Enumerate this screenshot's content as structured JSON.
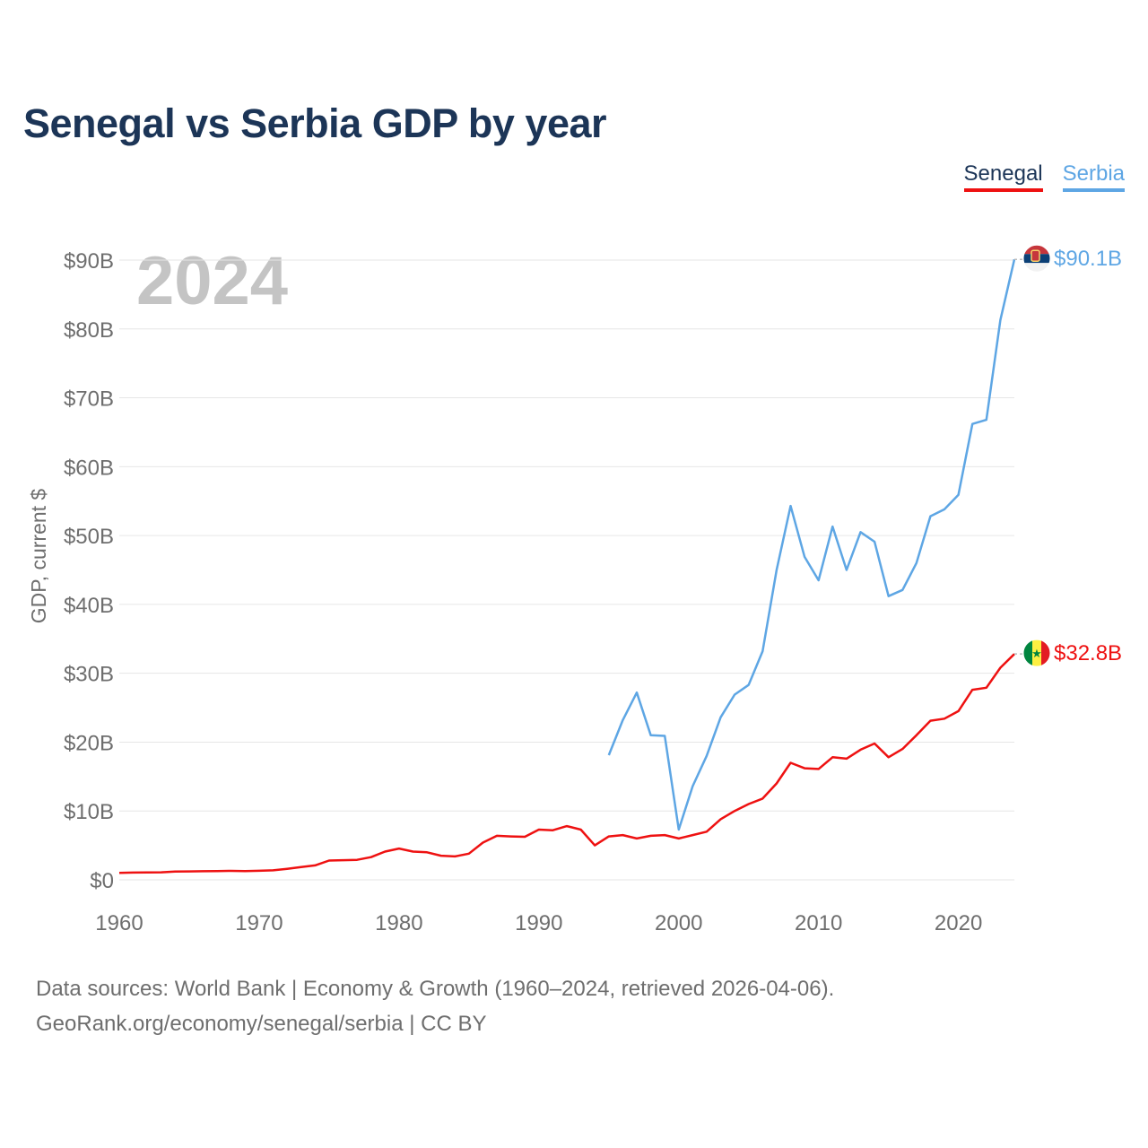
{
  "title": "Senegal vs Serbia GDP by year",
  "legend": [
    {
      "name": "Senegal",
      "color": "#ee1111"
    },
    {
      "name": "Serbia",
      "color": "#5ea6e4"
    }
  ],
  "year_watermark": "2024",
  "source": {
    "line1": "Data sources: World Bank | Economy & Growth (1960–2024, retrieved 2026-04-06).",
    "line2": "GeoRank.org/economy/senegal/serbia | CC BY"
  },
  "chart_data": {
    "type": "line",
    "title": "Senegal vs Serbia GDP by year",
    "xlabel": "",
    "ylabel": "GDP, current $",
    "xlim": [
      1960,
      2024
    ],
    "ylim": [
      0,
      90
    ],
    "x_ticks": [
      1960,
      1970,
      1980,
      1990,
      2000,
      2010,
      2020
    ],
    "y_ticks": [
      0,
      10,
      20,
      30,
      40,
      50,
      60,
      70,
      80,
      90
    ],
    "y_tick_labels": [
      "$0",
      "$10B",
      "$20B",
      "$30B",
      "$40B",
      "$50B",
      "$60B",
      "$70B",
      "$80B",
      "$90B"
    ],
    "grid": true,
    "units": "billion USD",
    "series": [
      {
        "name": "Senegal",
        "color": "#ee1111",
        "end_label": "$32.8B",
        "flag": "senegal-flag",
        "x": [
          1960,
          1961,
          1962,
          1963,
          1964,
          1965,
          1966,
          1967,
          1968,
          1969,
          1970,
          1971,
          1972,
          1973,
          1974,
          1975,
          1976,
          1977,
          1978,
          1979,
          1980,
          1981,
          1982,
          1983,
          1984,
          1985,
          1986,
          1987,
          1988,
          1989,
          1990,
          1991,
          1992,
          1993,
          1994,
          1995,
          1996,
          1997,
          1998,
          1999,
          2000,
          2001,
          2002,
          2003,
          2004,
          2005,
          2006,
          2007,
          2008,
          2009,
          2010,
          2011,
          2012,
          2013,
          2014,
          2015,
          2016,
          2017,
          2018,
          2019,
          2020,
          2021,
          2022,
          2023,
          2024
        ],
        "values": [
          1.0,
          1.05,
          1.07,
          1.1,
          1.2,
          1.22,
          1.25,
          1.27,
          1.3,
          1.28,
          1.32,
          1.38,
          1.6,
          1.85,
          2.1,
          2.8,
          2.85,
          2.9,
          3.3,
          4.1,
          4.55,
          4.1,
          4.0,
          3.5,
          3.4,
          3.8,
          5.4,
          6.4,
          6.3,
          6.25,
          7.3,
          7.2,
          7.8,
          7.3,
          5.0,
          6.3,
          6.5,
          6.0,
          6.4,
          6.5,
          6.0,
          6.5,
          7.0,
          8.8,
          10.0,
          11.0,
          11.8,
          14.0,
          17.0,
          16.2,
          16.1,
          17.8,
          17.6,
          18.9,
          19.8,
          17.8,
          19.0,
          21.0,
          23.1,
          23.4,
          24.5,
          27.6,
          27.9,
          30.8,
          32.8
        ]
      },
      {
        "name": "Serbia",
        "color": "#5ea6e4",
        "end_label": "$90.1B",
        "flag": "serbia-flag",
        "x": [
          1995,
          1996,
          1997,
          1998,
          1999,
          2000,
          2001,
          2002,
          2003,
          2004,
          2005,
          2006,
          2007,
          2008,
          2009,
          2010,
          2011,
          2012,
          2013,
          2014,
          2015,
          2016,
          2017,
          2018,
          2019,
          2020,
          2021,
          2022,
          2023,
          2024
        ],
        "values": [
          18.1,
          23.2,
          27.2,
          21.0,
          20.9,
          7.3,
          13.6,
          18.0,
          23.6,
          26.9,
          28.3,
          33.2,
          45.0,
          54.3,
          46.9,
          43.5,
          51.3,
          45.0,
          50.5,
          49.1,
          41.2,
          42.1,
          46.0,
          52.8,
          53.8,
          55.9,
          66.2,
          66.8,
          81.3,
          90.1
        ]
      }
    ]
  }
}
